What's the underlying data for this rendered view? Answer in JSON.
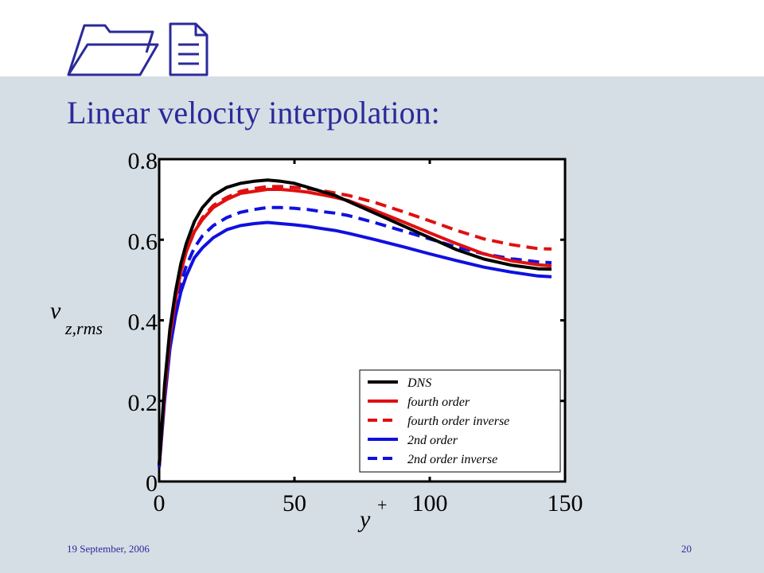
{
  "slide": {
    "title": "Linear velocity interpolation:",
    "date": "19 September, 2006",
    "page": "20"
  },
  "icons": [
    "folder-icon",
    "document-icon"
  ],
  "chart_data": {
    "type": "line",
    "xlabel": "y",
    "xlabel_superscript": "+",
    "ylabel": "v",
    "ylabel_subscript": "z,rms",
    "xlim": [
      0,
      150
    ],
    "ylim": [
      0,
      0.8
    ],
    "x_ticks": [
      "0",
      "50",
      "100",
      "150"
    ],
    "y_ticks": [
      "0",
      "0.2",
      "0.4",
      "0.6",
      "0.8"
    ],
    "legend_position": "bottom-right",
    "x": [
      0,
      2,
      4,
      6,
      8,
      10,
      13,
      16,
      20,
      25,
      30,
      35,
      40,
      45,
      50,
      55,
      60,
      65,
      70,
      80,
      90,
      100,
      110,
      120,
      130,
      140,
      145
    ],
    "series": [
      {
        "name": "DNS",
        "color": "#000000",
        "dash": "solid",
        "values": [
          0.04,
          0.24,
          0.38,
          0.47,
          0.54,
          0.59,
          0.645,
          0.68,
          0.71,
          0.73,
          0.74,
          0.745,
          0.748,
          0.745,
          0.74,
          0.73,
          0.72,
          0.71,
          0.695,
          0.665,
          0.635,
          0.605,
          0.575,
          0.552,
          0.537,
          0.528,
          0.527
        ]
      },
      {
        "name": "fourth order",
        "color": "#e01010",
        "dash": "solid",
        "values": [
          0.04,
          0.22,
          0.36,
          0.45,
          0.52,
          0.57,
          0.62,
          0.65,
          0.68,
          0.7,
          0.715,
          0.72,
          0.725,
          0.725,
          0.722,
          0.718,
          0.712,
          0.705,
          0.697,
          0.672,
          0.645,
          0.617,
          0.59,
          0.565,
          0.548,
          0.538,
          0.535
        ]
      },
      {
        "name": "fourth order inverse",
        "color": "#e01010",
        "dash": "dashed",
        "values": [
          0.04,
          0.22,
          0.36,
          0.45,
          0.52,
          0.57,
          0.62,
          0.655,
          0.685,
          0.705,
          0.72,
          0.727,
          0.732,
          0.732,
          0.73,
          0.727,
          0.722,
          0.716,
          0.71,
          0.692,
          0.67,
          0.647,
          0.623,
          0.602,
          0.588,
          0.578,
          0.577
        ]
      },
      {
        "name": "2nd order",
        "color": "#1010e0",
        "dash": "solid",
        "values": [
          0.035,
          0.2,
          0.33,
          0.41,
          0.47,
          0.51,
          0.555,
          0.58,
          0.605,
          0.625,
          0.635,
          0.64,
          0.643,
          0.64,
          0.637,
          0.633,
          0.628,
          0.623,
          0.616,
          0.6,
          0.583,
          0.565,
          0.548,
          0.532,
          0.52,
          0.51,
          0.508
        ]
      },
      {
        "name": "2nd order inverse",
        "color": "#1010e0",
        "dash": "dashed",
        "values": [
          0.035,
          0.21,
          0.345,
          0.43,
          0.49,
          0.535,
          0.58,
          0.61,
          0.635,
          0.655,
          0.668,
          0.675,
          0.68,
          0.68,
          0.678,
          0.675,
          0.67,
          0.666,
          0.66,
          0.642,
          0.622,
          0.602,
          0.582,
          0.565,
          0.553,
          0.545,
          0.543
        ]
      }
    ]
  }
}
